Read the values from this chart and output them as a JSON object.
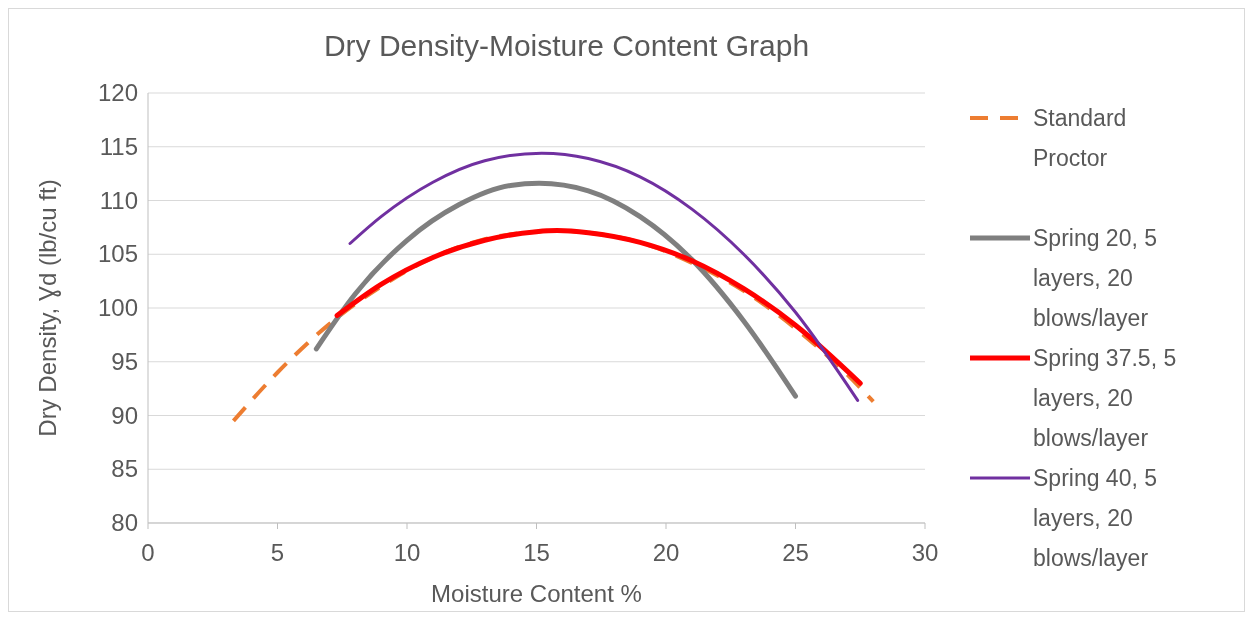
{
  "chart_data": {
    "type": "line",
    "title": "Dry Density-Moisture Content Graph",
    "xlabel": "Moisture Content %",
    "ylabel": "Dry Density, Ɣd (lb/cu ft)",
    "xlim": [
      0,
      30
    ],
    "xticks": [
      0,
      5,
      10,
      15,
      20,
      25,
      30
    ],
    "ylim": [
      80,
      120
    ],
    "yticks": [
      80,
      85,
      90,
      95,
      100,
      105,
      110,
      115,
      120
    ],
    "grid": "y",
    "legend": "right",
    "series": [
      {
        "name": "Standard Proctor",
        "color": "#ed7d31",
        "line_style": "dashed",
        "x": [
          3.3,
          5,
          7,
          9,
          11,
          13,
          15,
          15.7,
          17,
          19,
          21,
          23,
          25,
          27,
          28
        ],
        "values": [
          89.5,
          94.0,
          98.5,
          102.0,
          104.7,
          106.4,
          107.1,
          107.2,
          107.0,
          106.1,
          104.2,
          101.6,
          98.1,
          93.8,
          91.3
        ]
      },
      {
        "name": "Spring 20, 5 layers, 20 blows/layer",
        "color": "#7f7f7f",
        "line_style": "solid",
        "x": [
          6.5,
          8,
          10,
          12,
          14,
          15.1,
          17,
          19,
          21,
          23,
          25
        ],
        "values": [
          96.2,
          101.3,
          106.3,
          109.6,
          111.4,
          111.6,
          110.9,
          108.5,
          104.5,
          98.8,
          91.8
        ]
      },
      {
        "name": "Spring 37.5, 5 layers, 20 blows/layer",
        "color": "#ff0000",
        "line_style": "solid",
        "x": [
          7.3,
          9,
          11,
          13,
          15,
          15.8,
          17,
          19,
          21,
          23,
          25,
          27.5
        ],
        "values": [
          99.3,
          102.2,
          104.7,
          106.3,
          107.1,
          107.2,
          107.0,
          106.1,
          104.4,
          101.8,
          98.4,
          93.0
        ]
      },
      {
        "name": "Spring 40, 5 layers, 20 blows/layer",
        "color": "#7030a0",
        "line_style": "solid",
        "x": [
          7.8,
          9,
          11,
          13,
          15.2,
          17,
          19,
          21,
          23,
          25,
          27.4
        ],
        "values": [
          106.0,
          108.5,
          111.7,
          113.7,
          114.4,
          113.9,
          112.2,
          109.2,
          105.0,
          99.6,
          91.4
        ]
      }
    ]
  }
}
